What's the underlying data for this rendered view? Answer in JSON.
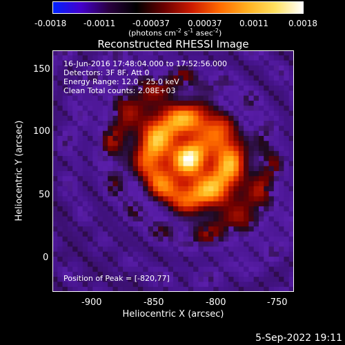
{
  "colorbar": {
    "labels": [
      "-0.0018",
      "-0.0011",
      "-0.00037",
      "0.00037",
      "0.0011",
      "0.0018"
    ],
    "units_prefix": "(photons cm",
    "units_sup1": "-2",
    "units_mid1": " s",
    "units_sup2": "-1",
    "units_mid2": " asec",
    "units_sup3": "-2",
    "units_suffix": ")",
    "colors": [
      "#0022ff",
      "#4400cc",
      "#2a0040",
      "#000000",
      "#6a0000",
      "#cc1a00",
      "#ff6a00",
      "#ffb020",
      "#ffe060",
      "#ffffff"
    ]
  },
  "title": "Reconstructed RHESSI Image",
  "annotations": {
    "line1": "16-Jun-2016 17:48:04.000 to 17:52:56.000",
    "line2": "Detectors: 3F 8F, Att 0",
    "line3": "Energy Range: 12.0 - 25.0 keV",
    "line4": "Clean      Total counts: 2.08E+03",
    "peak": "Position of Peak = [-820,77]"
  },
  "axes": {
    "xlabel": "Heliocentric X (arcsec)",
    "ylabel": "Heliocentric Y (arcsec)",
    "x_ticks": [
      "-900",
      "-850",
      "-800",
      "-750"
    ],
    "y_ticks": [
      "150",
      "100",
      "50",
      "0"
    ],
    "x_range": [
      -935,
      -740
    ],
    "y_range": [
      -28,
      166
    ]
  },
  "image": {
    "peak_position": [
      -820,
      77
    ],
    "colormap": "blue-black-red-yellow-white"
  },
  "timestamp": "5-Sep-2022 19:11"
}
